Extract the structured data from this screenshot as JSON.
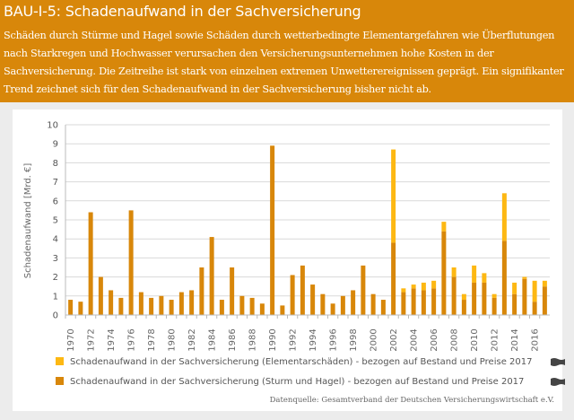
{
  "header": {
    "title": "BAU-I-5: Schadenaufwand in der Sachversicherung",
    "description": "Schäden durch Stürme und Hagel sowie Schäden durch wetterbedingte Elementargefahren wie Überflutungen nach Starkregen und Hochwasser verursachen den Versicherungsunternehmen hohe Kosten in der Sachversicherung. Die Zeitreihe ist stark von einzelnen extremen Unwetterereignissen geprägt. Ein signifikanter Trend zeichnet sich für den Schadenaufwand in der Sachversicherung bisher nicht ab.",
    "background_color": "#d8870a"
  },
  "chart_data": {
    "type": "bar",
    "stacked": true,
    "title": "",
    "xlabel": "",
    "ylabel": "Schadenaufwand [Mrd. €]",
    "ylim": [
      0,
      10
    ],
    "yticks": [
      0,
      1,
      2,
      3,
      4,
      5,
      6,
      7,
      8,
      9,
      10
    ],
    "grid": true,
    "categories": [
      1970,
      1971,
      1972,
      1973,
      1974,
      1975,
      1976,
      1977,
      1978,
      1979,
      1980,
      1981,
      1982,
      1983,
      1984,
      1985,
      1986,
      1987,
      1988,
      1989,
      1990,
      1991,
      1992,
      1993,
      1994,
      1995,
      1996,
      1997,
      1998,
      1999,
      2000,
      2001,
      2002,
      2003,
      2004,
      2005,
      2006,
      2007,
      2008,
      2009,
      2010,
      2011,
      2012,
      2013,
      2014,
      2015,
      2016,
      2017
    ],
    "xtick_labels": [
      "1970",
      "1972",
      "1974",
      "1976",
      "1978",
      "1980",
      "1982",
      "1984",
      "1986",
      "1988",
      "1990",
      "1992",
      "1994",
      "1996",
      "1998",
      "2000",
      "2002",
      "2004",
      "2006",
      "2008",
      "2010",
      "2012",
      "2014",
      "2016"
    ],
    "series": [
      {
        "name": "Schadenaufwand in der Sachversicherung (Sturm und Hagel) - bezogen auf Bestand und Preise 2017",
        "color": "#d8870a",
        "values": [
          0.8,
          0.7,
          5.4,
          2.0,
          1.3,
          0.9,
          5.5,
          1.2,
          0.9,
          1.0,
          0.8,
          1.2,
          1.3,
          2.5,
          4.1,
          0.8,
          2.5,
          1.0,
          0.9,
          0.6,
          8.9,
          0.5,
          2.1,
          2.6,
          1.6,
          1.1,
          0.6,
          1.0,
          1.3,
          2.6,
          1.1,
          0.8,
          3.8,
          1.2,
          1.4,
          1.3,
          1.4,
          4.4,
          2.0,
          0.8,
          1.7,
          1.7,
          0.9,
          3.9,
          1.1,
          1.9,
          0.7,
          1.5
        ]
      },
      {
        "name": "Schadenaufwand in der Sachversicherung  (Elementarschäden) - bezogen auf Bestand und Preise 2017",
        "color": "#fdb813",
        "values": [
          0,
          0,
          0,
          0,
          0,
          0,
          0,
          0,
          0,
          0,
          0,
          0,
          0,
          0,
          0,
          0,
          0,
          0,
          0,
          0,
          0,
          0,
          0,
          0,
          0,
          0,
          0,
          0,
          0,
          0,
          0,
          0,
          4.9,
          0.2,
          0.2,
          0.4,
          0.4,
          0.5,
          0.5,
          0.3,
          0.9,
          0.5,
          0.2,
          2.5,
          0.6,
          0.1,
          1.1,
          0.3
        ]
      }
    ],
    "legend": {
      "placement": "bottom",
      "entries": [
        {
          "label": "Schadenaufwand in der Sachversicherung  (Elementarschäden) - bezogen auf Bestand und Preise 2017",
          "color": "#fdb813",
          "trend_icon": "no-trend-flag-icon"
        },
        {
          "label": "Schadenaufwand in der Sachversicherung (Sturm und Hagel) - bezogen auf Bestand und Preise 2017",
          "color": "#d8870a",
          "trend_icon": "no-trend-flag-icon"
        }
      ]
    },
    "source": "Datenquelle: Gesamtverband der Deutschen Versicherungswirtschaft e.V."
  }
}
